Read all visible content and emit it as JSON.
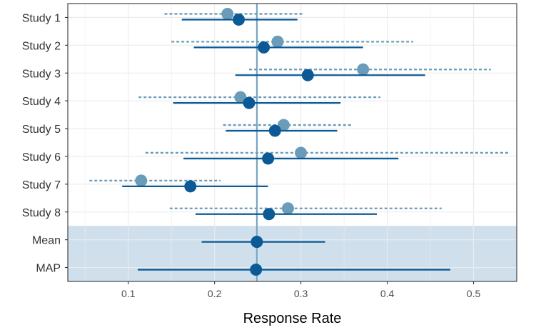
{
  "chart_data": {
    "type": "forest",
    "xlabel": "Response Rate",
    "xlim": [
      0.03,
      0.55
    ],
    "x_ticks": [
      "0.1",
      "0.2",
      "0.3",
      "0.4",
      "0.5"
    ],
    "x_tick_values": [
      0.1,
      0.2,
      0.3,
      0.4,
      0.5
    ],
    "reference_line": 0.249,
    "grid": true,
    "categories": [
      "Study 1",
      "Study 2",
      "Study 3",
      "Study 4",
      "Study 5",
      "Study 6",
      "Study 7",
      "Study 8",
      "Mean",
      "MAP"
    ],
    "shaded_rows": [
      "Mean",
      "MAP"
    ],
    "colors": {
      "estimate_dark": "#0b5a96",
      "estimate_light": "#6a9cb9",
      "reference_line": "#7ba6c4",
      "shade": "#cfe0ec",
      "grid": "#ebebeb",
      "panel_border": "#333333"
    },
    "series": [
      {
        "style": "dashed light",
        "points": [
          {
            "category": "Study 1",
            "estimate": 0.215,
            "lower": 0.142,
            "upper": 0.302
          },
          {
            "category": "Study 2",
            "estimate": 0.273,
            "lower": 0.15,
            "upper": 0.43
          },
          {
            "category": "Study 3",
            "estimate": 0.372,
            "lower": 0.24,
            "upper": 0.52
          },
          {
            "category": "Study 4",
            "estimate": 0.23,
            "lower": 0.112,
            "upper": 0.392
          },
          {
            "category": "Study 5",
            "estimate": 0.28,
            "lower": 0.21,
            "upper": 0.36
          },
          {
            "category": "Study 6",
            "estimate": 0.3,
            "lower": 0.12,
            "upper": 0.542
          },
          {
            "category": "Study 7",
            "estimate": 0.115,
            "lower": 0.055,
            "upper": 0.207
          },
          {
            "category": "Study 8",
            "estimate": 0.285,
            "lower": 0.148,
            "upper": 0.463
          }
        ]
      },
      {
        "style": "solid dark",
        "points": [
          {
            "category": "Study 1",
            "estimate": 0.228,
            "lower": 0.162,
            "upper": 0.296
          },
          {
            "category": "Study 2",
            "estimate": 0.257,
            "lower": 0.176,
            "upper": 0.372
          },
          {
            "category": "Study 3",
            "estimate": 0.308,
            "lower": 0.224,
            "upper": 0.444
          },
          {
            "category": "Study 4",
            "estimate": 0.24,
            "lower": 0.152,
            "upper": 0.346
          },
          {
            "category": "Study 5",
            "estimate": 0.27,
            "lower": 0.213,
            "upper": 0.342
          },
          {
            "category": "Study 6",
            "estimate": 0.262,
            "lower": 0.164,
            "upper": 0.413
          },
          {
            "category": "Study 7",
            "estimate": 0.172,
            "lower": 0.093,
            "upper": 0.262
          },
          {
            "category": "Study 8",
            "estimate": 0.263,
            "lower": 0.178,
            "upper": 0.388
          },
          {
            "category": "Mean",
            "estimate": 0.249,
            "lower": 0.185,
            "upper": 0.328
          },
          {
            "category": "MAP",
            "estimate": 0.248,
            "lower": 0.111,
            "upper": 0.473
          }
        ]
      }
    ]
  }
}
